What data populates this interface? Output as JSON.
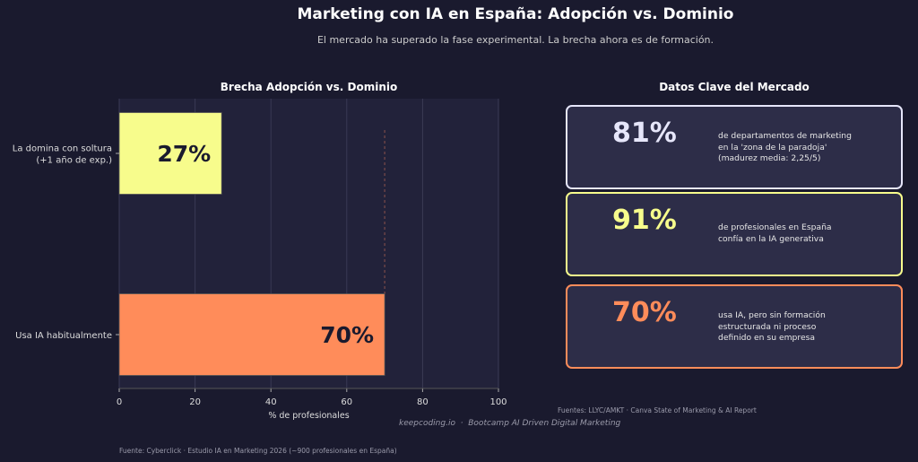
{
  "header": {
    "title": "Marketing con IA en España: Adopción vs. Dominio",
    "subtitle": "El mercado ha superado la fase experimental. La brecha ahora es de formación."
  },
  "chart_data": {
    "type": "bar",
    "orientation": "horizontal",
    "title": "Brecha Adopción vs. Dominio",
    "categories": [
      "La domina con soltura\n(+1 año de exp.)",
      "Usa IA habitualmente"
    ],
    "values": [
      27,
      70
    ],
    "data_labels": [
      "27%",
      "70%"
    ],
    "colors": [
      "#f7fc8c",
      "#ff8c5a"
    ],
    "xlabel": "% de profesionales",
    "ylabel": "",
    "xlim": [
      0,
      100
    ],
    "xticks": [
      0,
      20,
      40,
      60,
      80,
      100
    ],
    "grid": true,
    "reference_line": {
      "x": 70,
      "style": "dashed"
    }
  },
  "panel_right": {
    "title": "Datos Clave del Mercado",
    "cards": [
      {
        "value": "81%",
        "text": "de departamentos de marketing\nen la 'zona de la paradoja'\n(madurez media: 2,25/5)",
        "color": "#e6e6fa"
      },
      {
        "value": "91%",
        "text": "de profesionales en España\nconfía en la IA generativa",
        "color": "#f7fc8c"
      },
      {
        "value": "70%",
        "text": "usa IA, pero sin formación\nestructurada ni proceso\ndefinido en su empresa",
        "color": "#ff8c5a"
      }
    ],
    "source": "Fuentes: LLYC/AMKT · Canva State of Marketing & AI Report"
  },
  "footer": {
    "brand": "keepcoding.io  ·  Bootcamp AI Driven Digital Marketing",
    "source": "Fuente: Cyberclick · Estudio IA en Marketing 2026 (~900 profesionales en España)"
  }
}
